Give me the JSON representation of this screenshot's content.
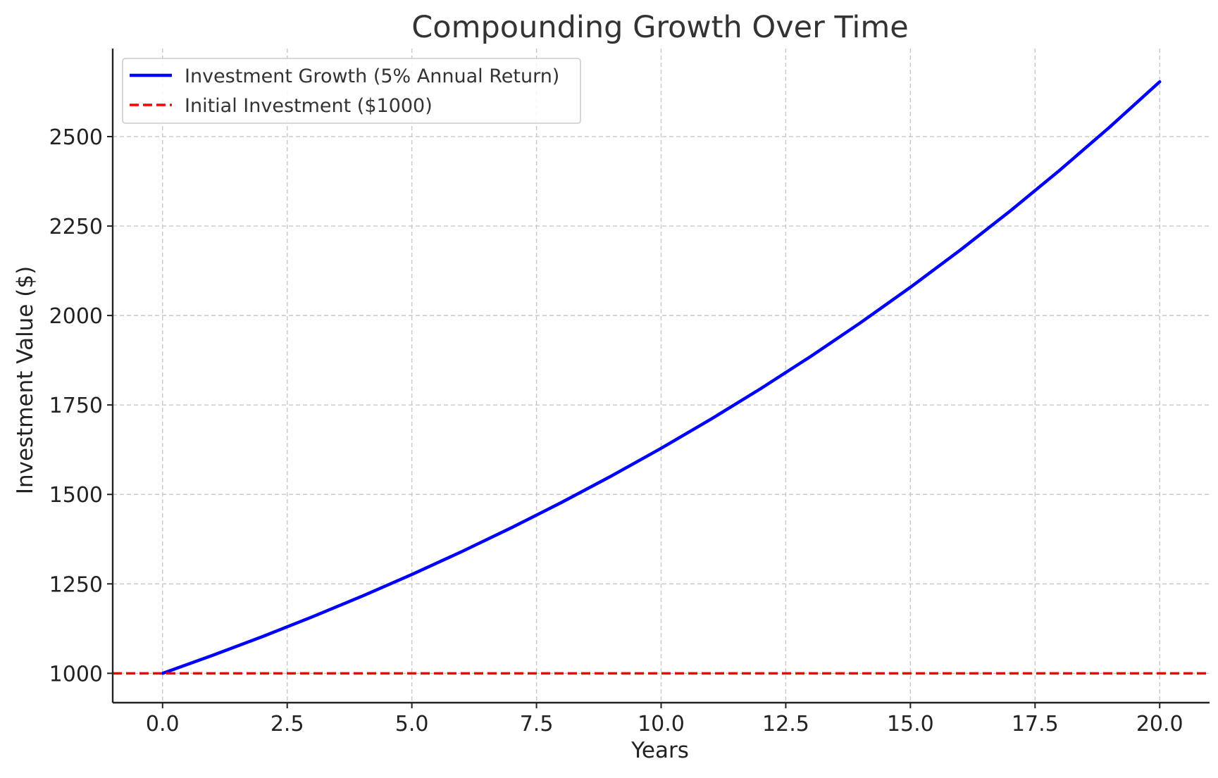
{
  "chart_data": {
    "type": "line",
    "title": "Compounding Growth Over Time",
    "xlabel": "Years",
    "ylabel": "Investment Value ($)",
    "xlim": [
      -1,
      21
    ],
    "ylim": [
      918,
      2746
    ],
    "x_ticks": [
      0.0,
      2.5,
      5.0,
      7.5,
      10.0,
      12.5,
      15.0,
      17.5,
      20.0
    ],
    "x_tick_labels": [
      "0.0",
      "2.5",
      "5.0",
      "7.5",
      "10.0",
      "12.5",
      "15.0",
      "17.5",
      "20.0"
    ],
    "y_ticks": [
      1000,
      1250,
      1500,
      1750,
      2000,
      2250,
      2500
    ],
    "y_tick_labels": [
      "1000",
      "1250",
      "1500",
      "1750",
      "2000",
      "2250",
      "2500"
    ],
    "grid": true,
    "legend_position": "top-left",
    "series": [
      {
        "name": "Investment Growth (5% Annual Return)",
        "color": "#0000ff",
        "style": "solid",
        "x": [
          0,
          1,
          2,
          3,
          4,
          5,
          6,
          7,
          8,
          9,
          10,
          11,
          12,
          13,
          14,
          15,
          16,
          17,
          18,
          19,
          20
        ],
        "values": [
          1000,
          1050,
          1102.5,
          1157.63,
          1215.51,
          1276.28,
          1340.1,
          1407.1,
          1477.46,
          1551.33,
          1628.89,
          1710.34,
          1795.86,
          1885.65,
          1979.93,
          2078.93,
          2182.87,
          2292.02,
          2406.62,
          2526.95,
          2653.3
        ]
      },
      {
        "name": "Initial Investment ($1000)",
        "color": "#ff0000",
        "style": "dashed",
        "type": "hline",
        "value": 1000
      }
    ]
  }
}
